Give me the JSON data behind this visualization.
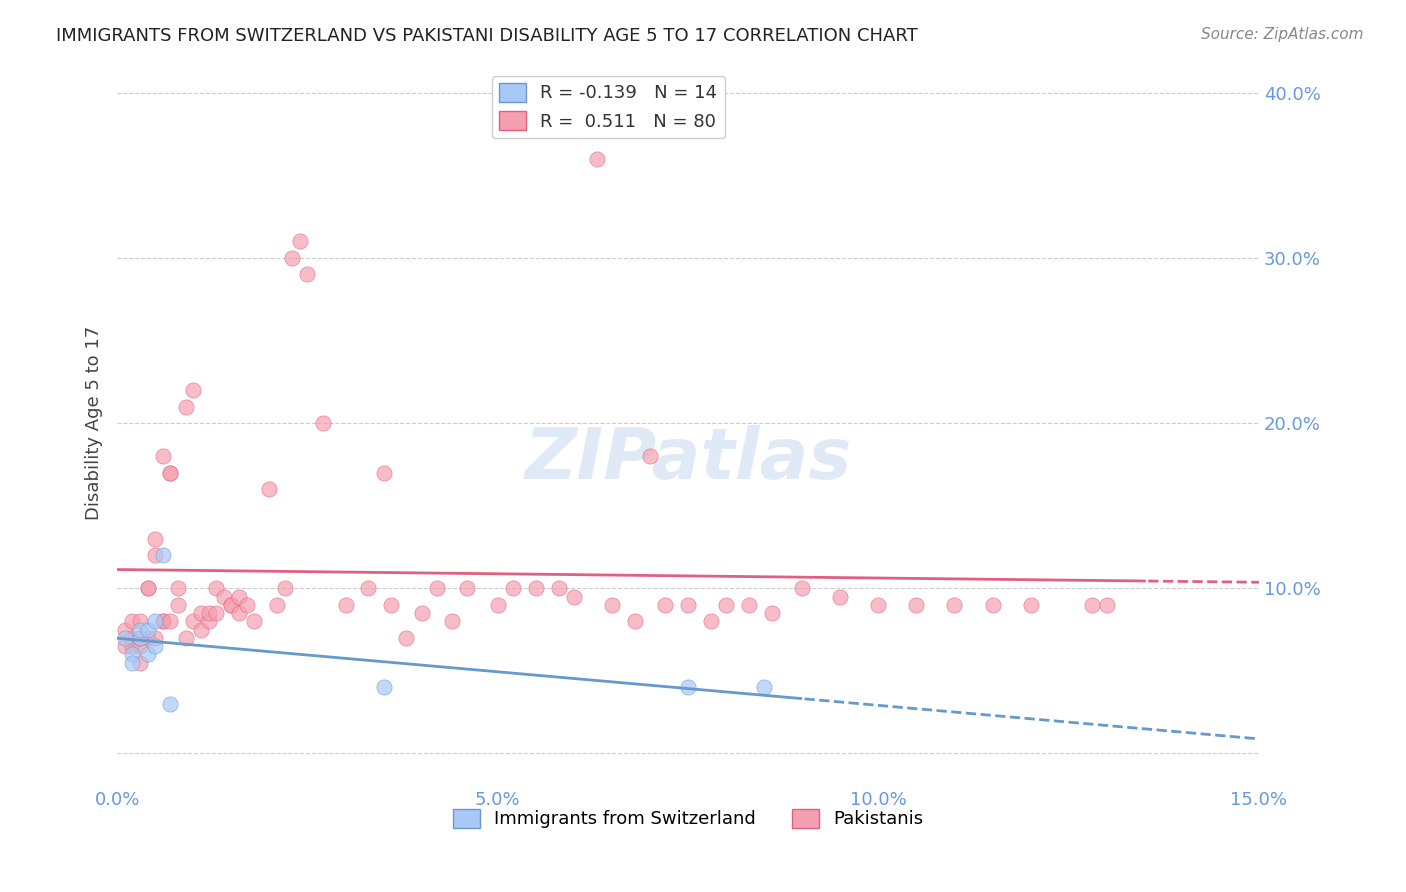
{
  "title": "IMMIGRANTS FROM SWITZERLAND VS PAKISTANI DISABILITY AGE 5 TO 17 CORRELATION CHART",
  "source": "Source: ZipAtlas.com",
  "ylabel": "Disability Age 5 to 17",
  "xlabel_bottom": "",
  "legend_label1": "Immigrants from Switzerland",
  "legend_label2": "Pakistanis",
  "R1": -0.139,
  "N1": 14,
  "R2": 0.511,
  "N2": 80,
  "xlim": [
    0.0,
    0.15
  ],
  "ylim": [
    -0.02,
    0.42
  ],
  "yticks_right": [
    0.1,
    0.2,
    0.3,
    0.4
  ],
  "ytick_labels_right": [
    "10.0%",
    "20.0%",
    "30.0%",
    "40.0%"
  ],
  "xticks": [
    0.0,
    0.05,
    0.1,
    0.15
  ],
  "xtick_labels": [
    "0.0%",
    "5.0%",
    "10.0%",
    "15.0%"
  ],
  "color_swiss": "#a8c8f8",
  "color_pakistan": "#f4a0b0",
  "color_swiss_line": "#6699cc",
  "color_pakistan_line": "#e06080",
  "color_axis_labels": "#6699dd",
  "background_color": "#ffffff",
  "watermark_text": "ZIPatlas",
  "swiss_x": [
    0.001,
    0.002,
    0.002,
    0.003,
    0.003,
    0.004,
    0.004,
    0.005,
    0.005,
    0.006,
    0.007,
    0.035,
    0.075,
    0.085
  ],
  "swiss_y": [
    0.07,
    0.06,
    0.055,
    0.07,
    0.075,
    0.075,
    0.06,
    0.065,
    0.08,
    0.12,
    0.03,
    0.04,
    0.04,
    0.04
  ],
  "pak_x": [
    0.001,
    0.001,
    0.002,
    0.002,
    0.002,
    0.003,
    0.003,
    0.003,
    0.003,
    0.004,
    0.004,
    0.004,
    0.005,
    0.005,
    0.005,
    0.006,
    0.006,
    0.006,
    0.007,
    0.007,
    0.007,
    0.008,
    0.008,
    0.009,
    0.009,
    0.01,
    0.01,
    0.011,
    0.011,
    0.012,
    0.012,
    0.013,
    0.013,
    0.014,
    0.015,
    0.015,
    0.016,
    0.016,
    0.017,
    0.018,
    0.02,
    0.021,
    0.022,
    0.023,
    0.024,
    0.025,
    0.027,
    0.03,
    0.033,
    0.035,
    0.036,
    0.038,
    0.04,
    0.042,
    0.044,
    0.046,
    0.05,
    0.052,
    0.055,
    0.058,
    0.06,
    0.063,
    0.065,
    0.068,
    0.07,
    0.072,
    0.075,
    0.078,
    0.08,
    0.083,
    0.086,
    0.09,
    0.095,
    0.1,
    0.105,
    0.11,
    0.115,
    0.12,
    0.128,
    0.13
  ],
  "pak_y": [
    0.075,
    0.065,
    0.07,
    0.08,
    0.065,
    0.08,
    0.065,
    0.055,
    0.07,
    0.1,
    0.1,
    0.07,
    0.07,
    0.12,
    0.13,
    0.18,
    0.08,
    0.08,
    0.17,
    0.17,
    0.08,
    0.1,
    0.09,
    0.21,
    0.07,
    0.08,
    0.22,
    0.075,
    0.085,
    0.08,
    0.085,
    0.1,
    0.085,
    0.095,
    0.09,
    0.09,
    0.085,
    0.095,
    0.09,
    0.08,
    0.16,
    0.09,
    0.1,
    0.3,
    0.31,
    0.29,
    0.2,
    0.09,
    0.1,
    0.17,
    0.09,
    0.07,
    0.085,
    0.1,
    0.08,
    0.1,
    0.09,
    0.1,
    0.1,
    0.1,
    0.095,
    0.36,
    0.09,
    0.08,
    0.18,
    0.09,
    0.09,
    0.08,
    0.09,
    0.09,
    0.085,
    0.1,
    0.095,
    0.09,
    0.09,
    0.09,
    0.09,
    0.09,
    0.09,
    0.09
  ]
}
